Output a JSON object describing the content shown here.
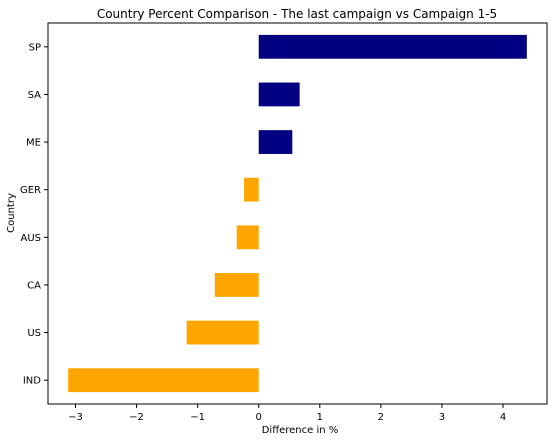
{
  "chart_data": {
    "type": "bar",
    "orientation": "horizontal",
    "title": "Country Percent Comparison - The last campaign vs Campaign 1-5",
    "xlabel": "Difference in %",
    "ylabel": "Country",
    "categories": [
      "IND",
      "US",
      "CA",
      "AUS",
      "GER",
      "ME",
      "SA",
      "SP"
    ],
    "values": [
      -3.12,
      -1.18,
      -0.72,
      -0.36,
      -0.24,
      0.55,
      0.67,
      4.39
    ],
    "xlim": [
      -3.45,
      4.72
    ],
    "xticks": [
      -3,
      -2,
      -1,
      0,
      1,
      2,
      3,
      4
    ],
    "xtick_labels": [
      "−3",
      "−2",
      "−1",
      "0",
      "1",
      "2",
      "3",
      "4"
    ],
    "grid": false,
    "colors": {
      "positive": "#000080",
      "negative": "#ffa500"
    }
  }
}
